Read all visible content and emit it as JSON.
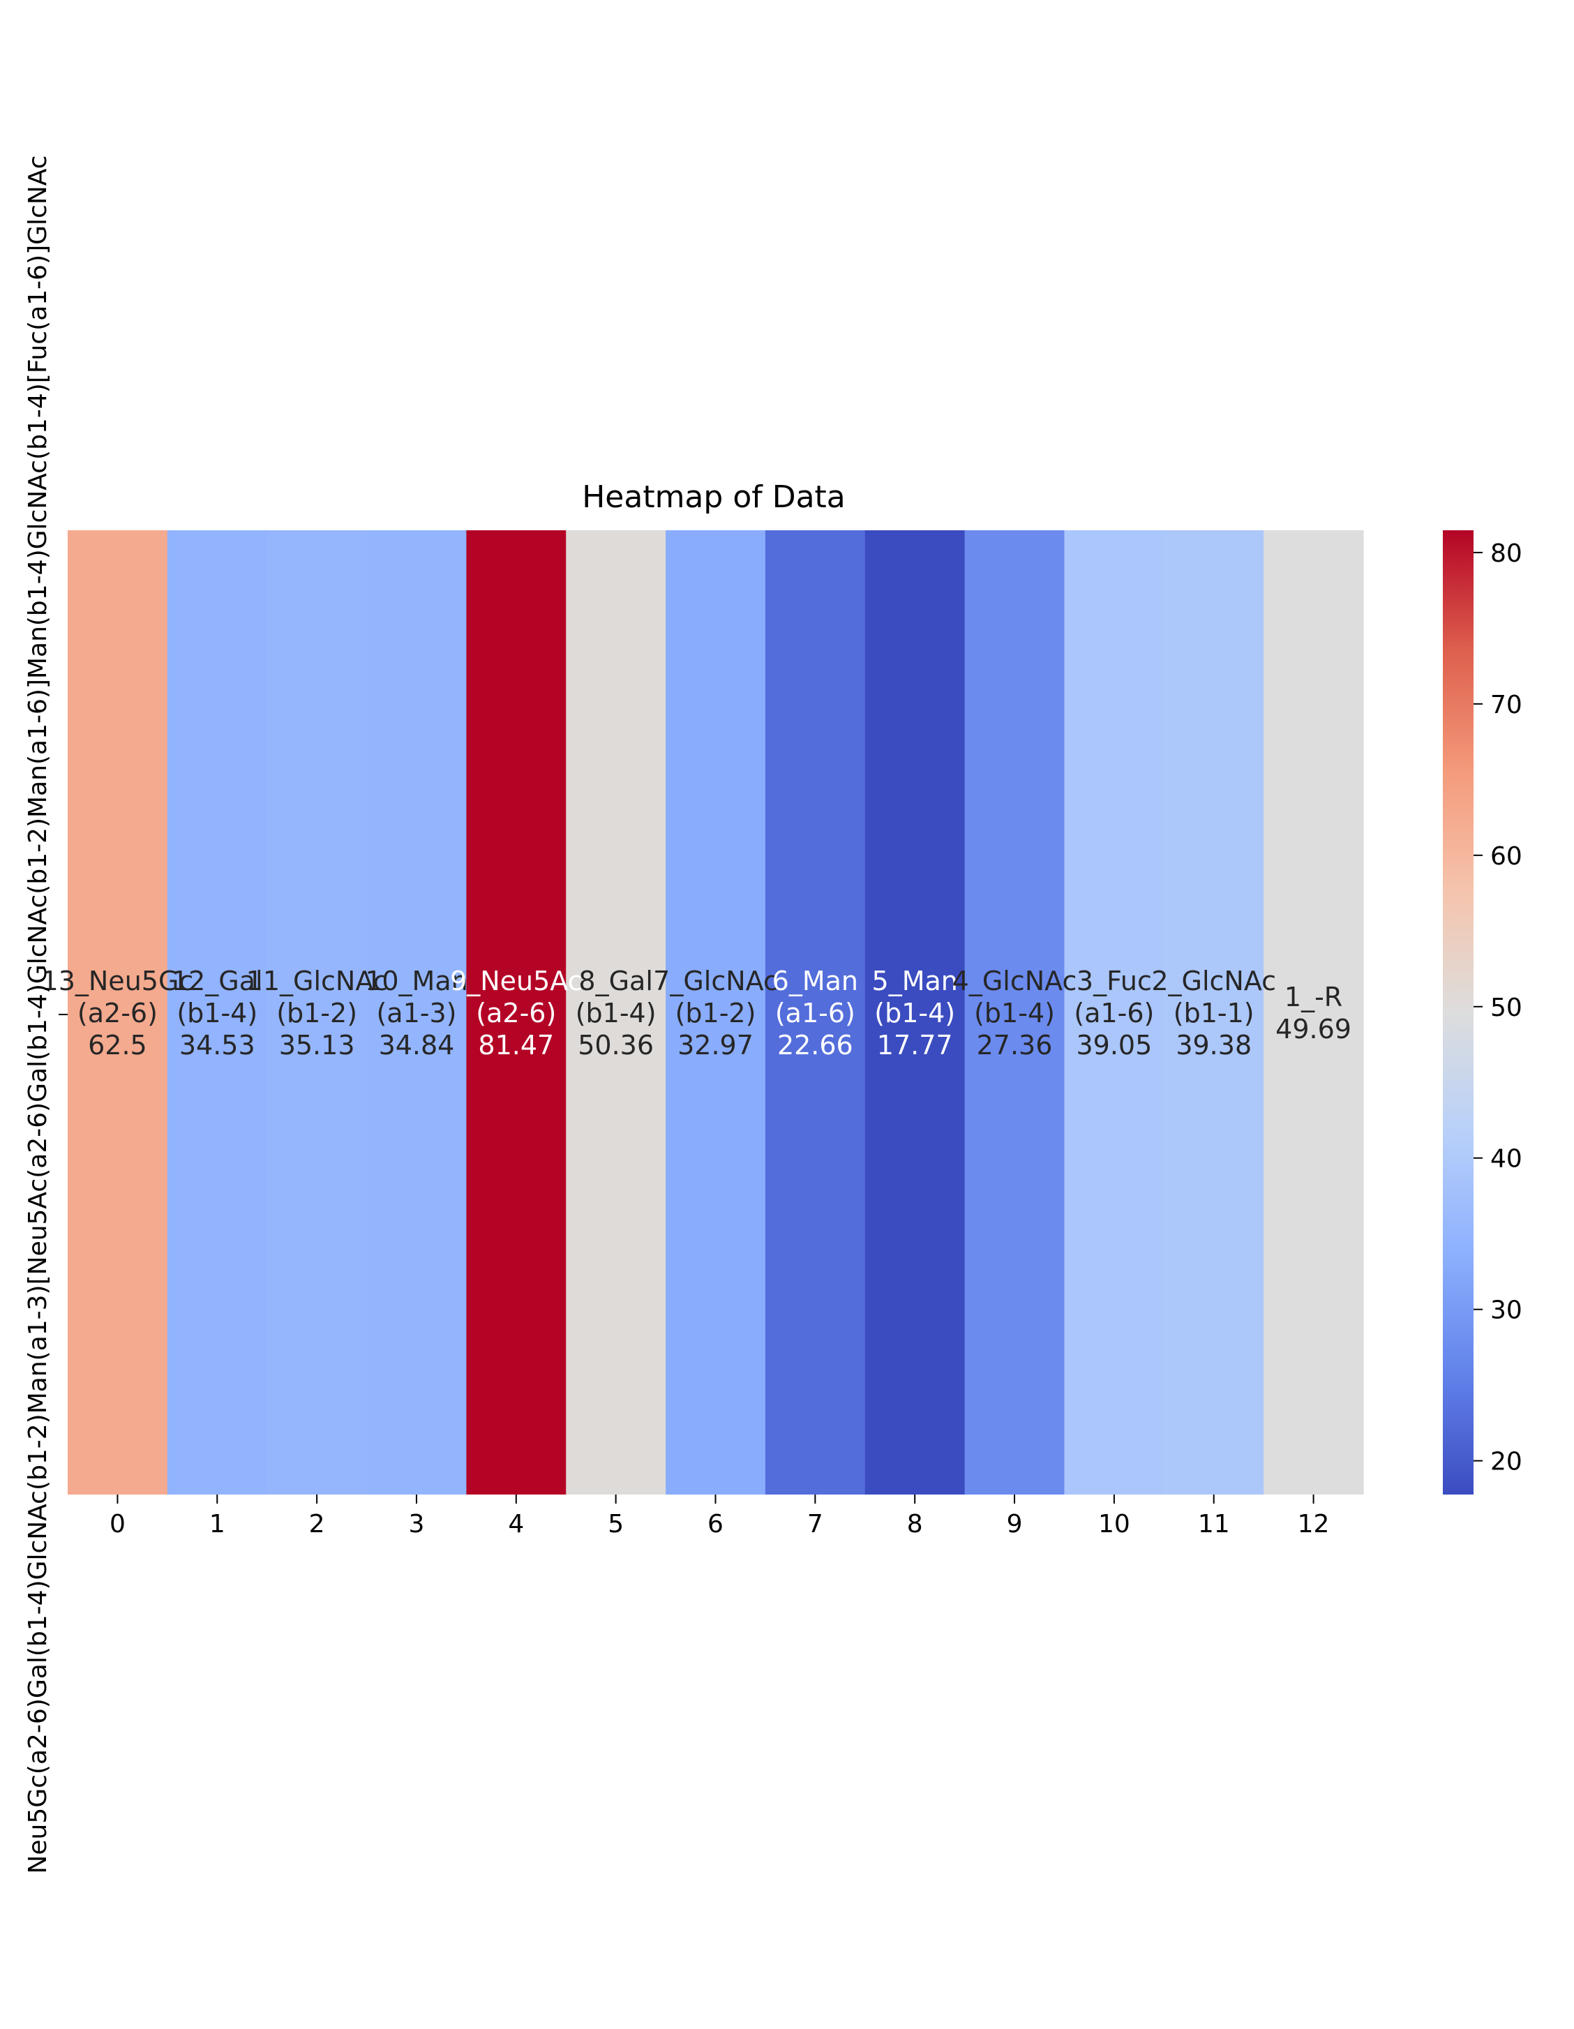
{
  "chart_data": {
    "type": "heatmap",
    "title": "Heatmap of Data",
    "y_tick_label": "Neu5Gc(a2-6)Gal(b1-4)GlcNAc(b1-2)Man(a1-3)[Neu5Ac(a2-6)Gal(b1-4)GlcNAc(b1-2)Man(a1-6)]Man(b1-4)GlcNAc(b1-4)[Fuc(a1-6)]GlcNAc",
    "x_ticks": [
      "0",
      "1",
      "2",
      "3",
      "4",
      "5",
      "6",
      "7",
      "8",
      "9",
      "10",
      "11",
      "12"
    ],
    "cells": [
      {
        "label": [
          "13_Neu5Gc",
          "(a2-6)"
        ],
        "value": 62.5,
        "value_text": "62.5"
      },
      {
        "label": [
          "12_Gal",
          "(b1-4)"
        ],
        "value": 34.53,
        "value_text": "34.53"
      },
      {
        "label": [
          "11_GlcNAc",
          "(b1-2)"
        ],
        "value": 35.13,
        "value_text": "35.13"
      },
      {
        "label": [
          "10_Man",
          "(a1-3)"
        ],
        "value": 34.84,
        "value_text": "34.84"
      },
      {
        "label": [
          "9_Neu5Ac",
          "(a2-6)"
        ],
        "value": 81.47,
        "value_text": "81.47"
      },
      {
        "label": [
          "8_Gal",
          "(b1-4)"
        ],
        "value": 50.36,
        "value_text": "50.36"
      },
      {
        "label": [
          "7_GlcNAc",
          "(b1-2)"
        ],
        "value": 32.97,
        "value_text": "32.97"
      },
      {
        "label": [
          "6_Man",
          "(a1-6)"
        ],
        "value": 22.66,
        "value_text": "22.66"
      },
      {
        "label": [
          "5_Man",
          "(b1-4)"
        ],
        "value": 17.77,
        "value_text": "17.77"
      },
      {
        "label": [
          "4_GlcNAc",
          "(b1-4)"
        ],
        "value": 27.36,
        "value_text": "27.36"
      },
      {
        "label": [
          "3_Fuc",
          "(a1-6)"
        ],
        "value": 39.05,
        "value_text": "39.05"
      },
      {
        "label": [
          "2_GlcNAc",
          "(b1-1)"
        ],
        "value": 39.38,
        "value_text": "39.38"
      },
      {
        "label": [
          "1_-R"
        ],
        "value": 49.69,
        "value_text": "49.69"
      }
    ],
    "colormap": "coolwarm",
    "vmin": 17.77,
    "vmax": 81.47,
    "colorbar_ticks": [
      "20",
      "30",
      "40",
      "50",
      "60",
      "70",
      "80"
    ],
    "grid": false,
    "legend": "colorbar-right"
  }
}
